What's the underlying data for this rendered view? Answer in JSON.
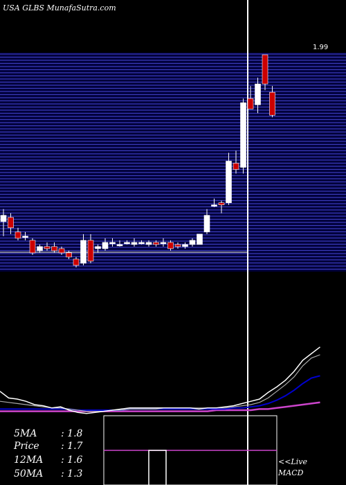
{
  "header": {
    "title": "USA GLBS MunafaSutra.com"
  },
  "colors": {
    "background": "#000000",
    "price_band": "#00003a",
    "band_lines": "#3b3bbb",
    "up_candle": "#ffffff",
    "down_candle": "#cc0000",
    "price_line": "#ffffff",
    "ma_fast": "#aaaaaa",
    "ma_mid": "#0000cc",
    "ma_slow": "#cc44cc",
    "macd_line": "#cc44cc"
  },
  "stats": [
    {
      "label": "5MA",
      "value": "1.8"
    },
    {
      "label": "Price",
      "value": "1.7"
    },
    {
      "label": "12MA",
      "value": "1.6"
    },
    {
      "label": "50MA",
      "value": "1.3"
    }
  ],
  "macd_panel": {
    "live_label": "<<Live",
    "macd_label": "MACD"
  },
  "chart_data": {
    "type": "candlestick",
    "title": "USA GLBS MunafaSutra.com",
    "y_axis_top_label": "1.99",
    "ylim": [
      0.95,
      2.0
    ],
    "candles": [
      {
        "o": 1.19,
        "h": 1.25,
        "l": 1.12,
        "c": 1.22
      },
      {
        "o": 1.21,
        "h": 1.23,
        "l": 1.13,
        "c": 1.16
      },
      {
        "o": 1.14,
        "h": 1.16,
        "l": 1.1,
        "c": 1.11
      },
      {
        "o": 1.12,
        "h": 1.14,
        "l": 1.1,
        "c": 1.12
      },
      {
        "o": 1.1,
        "h": 1.11,
        "l": 1.03,
        "c": 1.04
      },
      {
        "o": 1.05,
        "h": 1.08,
        "l": 1.04,
        "c": 1.07
      },
      {
        "o": 1.07,
        "h": 1.09,
        "l": 1.05,
        "c": 1.06
      },
      {
        "o": 1.07,
        "h": 1.09,
        "l": 1.04,
        "c": 1.05
      },
      {
        "o": 1.06,
        "h": 1.07,
        "l": 1.03,
        "c": 1.04
      },
      {
        "o": 1.04,
        "h": 1.05,
        "l": 1.01,
        "c": 1.02
      },
      {
        "o": 1.01,
        "h": 1.02,
        "l": 0.97,
        "c": 0.98
      },
      {
        "o": 0.99,
        "h": 1.13,
        "l": 0.98,
        "c": 1.1
      },
      {
        "o": 1.1,
        "h": 1.13,
        "l": 0.99,
        "c": 1.0
      },
      {
        "o": 1.06,
        "h": 1.08,
        "l": 1.04,
        "c": 1.07
      },
      {
        "o": 1.06,
        "h": 1.11,
        "l": 1.05,
        "c": 1.09
      },
      {
        "o": 1.09,
        "h": 1.11,
        "l": 1.07,
        "c": 1.09
      },
      {
        "o": 1.08,
        "h": 1.1,
        "l": 1.07,
        "c": 1.08
      },
      {
        "o": 1.09,
        "h": 1.1,
        "l": 1.08,
        "c": 1.09
      },
      {
        "o": 1.08,
        "h": 1.11,
        "l": 1.07,
        "c": 1.09
      },
      {
        "o": 1.09,
        "h": 1.1,
        "l": 1.08,
        "c": 1.09
      },
      {
        "o": 1.08,
        "h": 1.1,
        "l": 1.07,
        "c": 1.09
      },
      {
        "o": 1.09,
        "h": 1.1,
        "l": 1.07,
        "c": 1.08
      },
      {
        "o": 1.09,
        "h": 1.11,
        "l": 1.07,
        "c": 1.09
      },
      {
        "o": 1.09,
        "h": 1.1,
        "l": 1.05,
        "c": 1.06
      },
      {
        "o": 1.08,
        "h": 1.09,
        "l": 1.06,
        "c": 1.07
      },
      {
        "o": 1.07,
        "h": 1.09,
        "l": 1.06,
        "c": 1.08
      },
      {
        "o": 1.08,
        "h": 1.11,
        "l": 1.07,
        "c": 1.1
      },
      {
        "o": 1.08,
        "h": 1.13,
        "l": 1.08,
        "c": 1.13
      },
      {
        "o": 1.14,
        "h": 1.25,
        "l": 1.13,
        "c": 1.22
      },
      {
        "o": 1.27,
        "h": 1.3,
        "l": 1.26,
        "c": 1.27
      },
      {
        "o": 1.28,
        "h": 1.29,
        "l": 1.23,
        "c": 1.27
      },
      {
        "o": 1.28,
        "h": 1.52,
        "l": 1.27,
        "c": 1.48
      },
      {
        "o": 1.47,
        "h": 1.53,
        "l": 1.42,
        "c": 1.44
      },
      {
        "o": 1.45,
        "h": 1.78,
        "l": 1.42,
        "c": 1.76
      },
      {
        "o": 1.78,
        "h": 1.84,
        "l": 1.73,
        "c": 1.73
      },
      {
        "o": 1.75,
        "h": 1.88,
        "l": 1.71,
        "c": 1.85
      },
      {
        "o": 1.99,
        "h": 1.99,
        "l": 1.82,
        "c": 1.85
      },
      {
        "o": 1.81,
        "h": 1.84,
        "l": 1.69,
        "c": 1.7
      }
    ],
    "ma_price": [
      1.22,
      1.16,
      1.15,
      1.13,
      1.1,
      1.09,
      1.07,
      1.08,
      1.05,
      1.03,
      1.02,
      1.03,
      1.04,
      1.05,
      1.06,
      1.07,
      1.07,
      1.07,
      1.07,
      1.07,
      1.07,
      1.07,
      1.07,
      1.06,
      1.07,
      1.07,
      1.08,
      1.09,
      1.11,
      1.13,
      1.15,
      1.21,
      1.26,
      1.32,
      1.4,
      1.5,
      1.56,
      1.62
    ],
    "ma_5": [
      1.13,
      1.12,
      1.11,
      1.1,
      1.09,
      1.08,
      1.07,
      1.07,
      1.06,
      1.05,
      1.04,
      1.04,
      1.04,
      1.05,
      1.05,
      1.06,
      1.06,
      1.06,
      1.06,
      1.07,
      1.07,
      1.07,
      1.07,
      1.07,
      1.07,
      1.07,
      1.07,
      1.08,
      1.09,
      1.1,
      1.12,
      1.16,
      1.22,
      1.28,
      1.35,
      1.45,
      1.52,
      1.55
    ],
    "ma_12": [
      1.06,
      1.06,
      1.06,
      1.06,
      1.06,
      1.06,
      1.06,
      1.06,
      1.06,
      1.05,
      1.05,
      1.05,
      1.05,
      1.05,
      1.05,
      1.06,
      1.06,
      1.06,
      1.06,
      1.06,
      1.06,
      1.06,
      1.06,
      1.06,
      1.06,
      1.06,
      1.06,
      1.07,
      1.07,
      1.08,
      1.09,
      1.11,
      1.14,
      1.18,
      1.23,
      1.29,
      1.34,
      1.36
    ],
    "ma_50": [
      1.04,
      1.04,
      1.04,
      1.04,
      1.04,
      1.04,
      1.04,
      1.04,
      1.04,
      1.04,
      1.04,
      1.04,
      1.04,
      1.04,
      1.04,
      1.04,
      1.04,
      1.04,
      1.04,
      1.04,
      1.04,
      1.04,
      1.04,
      1.04,
      1.04,
      1.05,
      1.05,
      1.05,
      1.05,
      1.05,
      1.06,
      1.06,
      1.07,
      1.08,
      1.09,
      1.1,
      1.11,
      1.12
    ],
    "macd": {
      "visible_bar": 1,
      "line_level": 0.3
    }
  }
}
